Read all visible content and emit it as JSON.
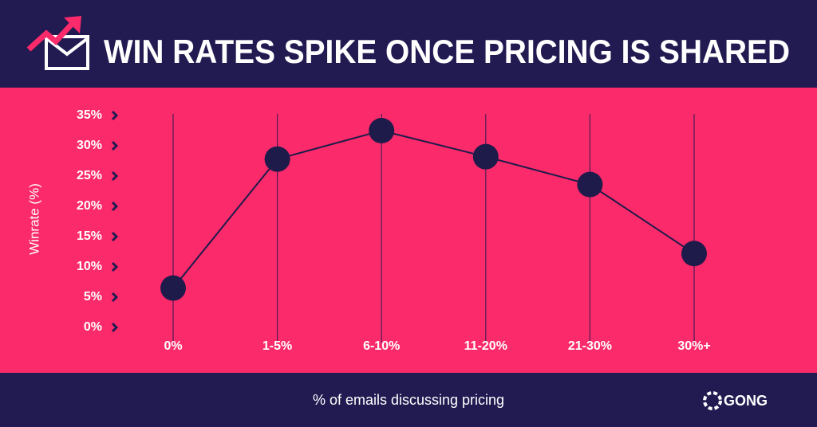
{
  "chart_data": {
    "type": "line",
    "title": "WIN RATES SPIKE ONCE PRICING IS SHARED",
    "y_label": "Winrate (%)",
    "x_label": "% of emails discussing pricing",
    "logo": "GONG",
    "categories": [
      "0%",
      "1-5%",
      "6-10%",
      "11-20%",
      "21-30%",
      "30%+"
    ],
    "series": [
      {
        "name": "Winrate",
        "color": "#1e1b4b",
        "values": [
          6.5,
          27.8,
          32.5,
          28.2,
          23.6,
          12.2
        ]
      }
    ],
    "ylim": [
      0,
      35
    ],
    "yticks": [
      {
        "value": 0,
        "label": "0%"
      },
      {
        "value": 5,
        "label": "5%"
      },
      {
        "value": 10,
        "label": "10%"
      },
      {
        "value": 15,
        "label": "15%"
      },
      {
        "value": 20,
        "label": "20%"
      },
      {
        "value": 25,
        "label": "25%"
      },
      {
        "value": 30,
        "label": "30%"
      },
      {
        "value": 35,
        "label": "35%"
      }
    ]
  }
}
